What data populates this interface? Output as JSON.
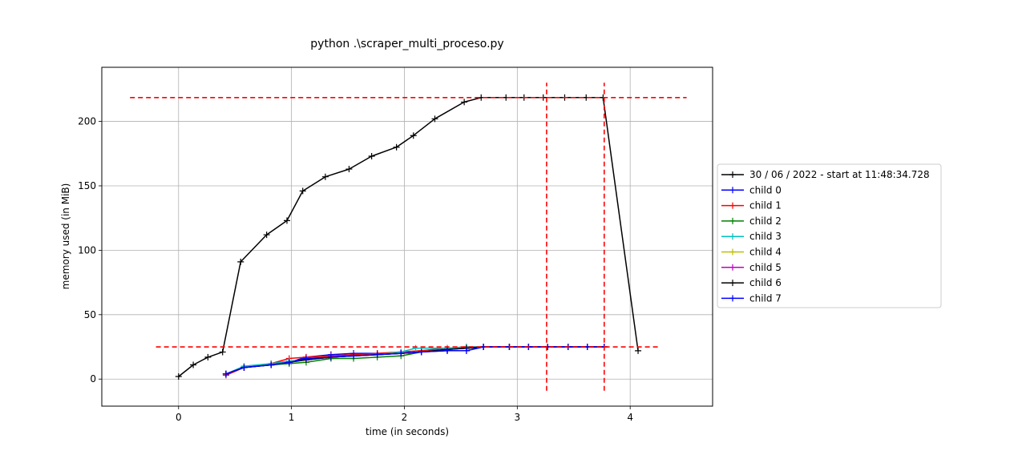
{
  "chart_data": {
    "type": "line",
    "title": "python .\\scraper_multi_proceso.py",
    "xlabel": "time (in seconds)",
    "ylabel": "memory used (in MiB)",
    "xlim": [
      -0.68,
      4.73
    ],
    "ylim": [
      -21,
      242
    ],
    "xticks": [
      0,
      1,
      2,
      3,
      4
    ],
    "yticks": [
      0,
      50,
      100,
      150,
      200
    ],
    "grid": true,
    "legend_position": "right, outside plot",
    "series": [
      {
        "name": "30 / 06 / 2022 - start at 11:48:34.728",
        "color": "#000000",
        "x": [
          0.0,
          0.13,
          0.26,
          0.39,
          0.55,
          0.78,
          0.96,
          1.1,
          1.3,
          1.51,
          1.71,
          1.93,
          2.08,
          2.27,
          2.53,
          2.68,
          2.9,
          3.06,
          3.23,
          3.42,
          3.61,
          3.76,
          4.07
        ],
        "y": [
          2,
          11,
          17,
          21,
          91,
          112,
          123,
          146,
          157,
          163,
          173,
          180,
          189,
          202,
          215,
          218.5,
          218.5,
          218.5,
          218.5,
          218.5,
          218.5,
          218.5,
          22
        ]
      },
      {
        "name": "child 0",
        "color": "#0000ff",
        "x": [
          0.42,
          0.58,
          0.82,
          0.98,
          1.13,
          1.35,
          1.55,
          1.76,
          1.97,
          2.15,
          2.38,
          2.55,
          2.7,
          2.93,
          3.1,
          3.27,
          3.45,
          3.62,
          3.77
        ],
        "y": [
          4,
          9,
          11,
          13,
          17,
          19,
          20,
          20,
          20,
          21,
          22,
          22,
          25,
          25,
          25,
          25,
          25,
          25,
          25
        ]
      },
      {
        "name": "child 1",
        "color": "#ff0000",
        "x": [
          0.42,
          0.58,
          0.82,
          0.98,
          1.13,
          1.35,
          1.55,
          1.76,
          1.97,
          2.15,
          2.38,
          2.55,
          2.7,
          2.93,
          3.1,
          3.27,
          3.45,
          3.62,
          3.77
        ],
        "y": [
          3,
          9,
          12,
          16,
          17,
          18,
          19,
          20,
          21,
          22,
          24,
          25,
          25,
          25,
          25,
          25,
          25,
          25,
          25
        ]
      },
      {
        "name": "child 2",
        "color": "#008000",
        "x": [
          0.42,
          0.58,
          0.82,
          0.98,
          1.13,
          1.35,
          1.55,
          1.76,
          1.97,
          2.15,
          2.38,
          2.55,
          2.7,
          2.93,
          3.1,
          3.27,
          3.45,
          3.62,
          3.77
        ],
        "y": [
          4,
          9,
          11,
          12,
          13,
          16,
          16,
          17,
          18,
          21,
          23,
          24,
          25,
          25,
          25,
          25,
          25,
          25,
          25
        ]
      },
      {
        "name": "child 3",
        "color": "#00bfbf",
        "x": [
          0.42,
          0.58,
          0.82,
          0.98,
          1.13,
          1.35,
          1.55,
          1.76,
          1.97,
          2.1,
          2.38,
          2.55,
          2.7,
          2.93,
          3.1,
          3.27,
          3.45,
          3.62,
          3.77
        ],
        "y": [
          4,
          10,
          12,
          14,
          15,
          17,
          18,
          19,
          21,
          24,
          24,
          25,
          25,
          25,
          25,
          25,
          25,
          25,
          25
        ]
      },
      {
        "name": "child 4",
        "color": "#bfbf00",
        "x": [
          0.42,
          0.58,
          0.82,
          0.98,
          1.13,
          1.35,
          1.55,
          1.76,
          1.97,
          2.15,
          2.38,
          2.55,
          2.7,
          2.93,
          3.1,
          3.27,
          3.45,
          3.62,
          3.77
        ],
        "y": [
          4,
          9,
          11,
          13,
          15,
          17,
          18,
          19,
          20,
          21,
          23,
          24,
          25,
          25,
          25,
          25,
          25,
          25,
          25
        ]
      },
      {
        "name": "child 5",
        "color": "#bf00bf",
        "x": [
          0.42,
          0.58,
          0.82,
          0.98,
          1.13,
          1.35,
          1.55,
          1.76,
          1.97,
          2.15,
          2.38,
          2.55,
          2.7,
          2.93,
          3.1,
          3.27,
          3.45,
          3.62,
          3.77
        ],
        "y": [
          4,
          9,
          11,
          13,
          15,
          17,
          18,
          19,
          20,
          21,
          23,
          24,
          25,
          25,
          25,
          25,
          25,
          25,
          25
        ]
      },
      {
        "name": "child 6",
        "color": "#000000",
        "x": [
          0.42,
          0.58,
          0.82,
          0.98,
          1.13,
          1.35,
          1.55,
          1.76,
          1.97,
          2.15,
          2.38,
          2.55,
          2.7,
          2.93,
          3.1,
          3.27,
          3.45,
          3.62,
          3.77
        ],
        "y": [
          4,
          9,
          11,
          13,
          15,
          17,
          18,
          19,
          20,
          21,
          23,
          24,
          25,
          25,
          25,
          25,
          25,
          25,
          25
        ]
      },
      {
        "name": "child 7",
        "color": "#0000ff",
        "x": [
          0.42,
          0.58,
          0.82,
          0.98,
          1.13,
          1.35,
          1.55,
          1.76,
          1.97,
          2.15,
          2.38,
          2.55,
          2.7,
          2.93,
          3.1,
          3.27,
          3.45,
          3.62,
          3.77
        ],
        "y": [
          4,
          9,
          11,
          13,
          16,
          17,
          18,
          19,
          20,
          21,
          22,
          22,
          25,
          25,
          25,
          25,
          25,
          25,
          25
        ]
      }
    ],
    "reference_lines": {
      "color": "#ff0000",
      "horizontal": [
        {
          "y": 218.5,
          "x_range": [
            -0.43,
            4.5
          ]
        },
        {
          "y": 25,
          "x_range": [
            -0.2,
            4.27
          ]
        }
      ],
      "vertical": [
        {
          "x": 3.26,
          "y_range": [
            -9,
            230
          ]
        },
        {
          "x": 3.77,
          "y_range": [
            -9,
            230
          ]
        }
      ]
    }
  }
}
